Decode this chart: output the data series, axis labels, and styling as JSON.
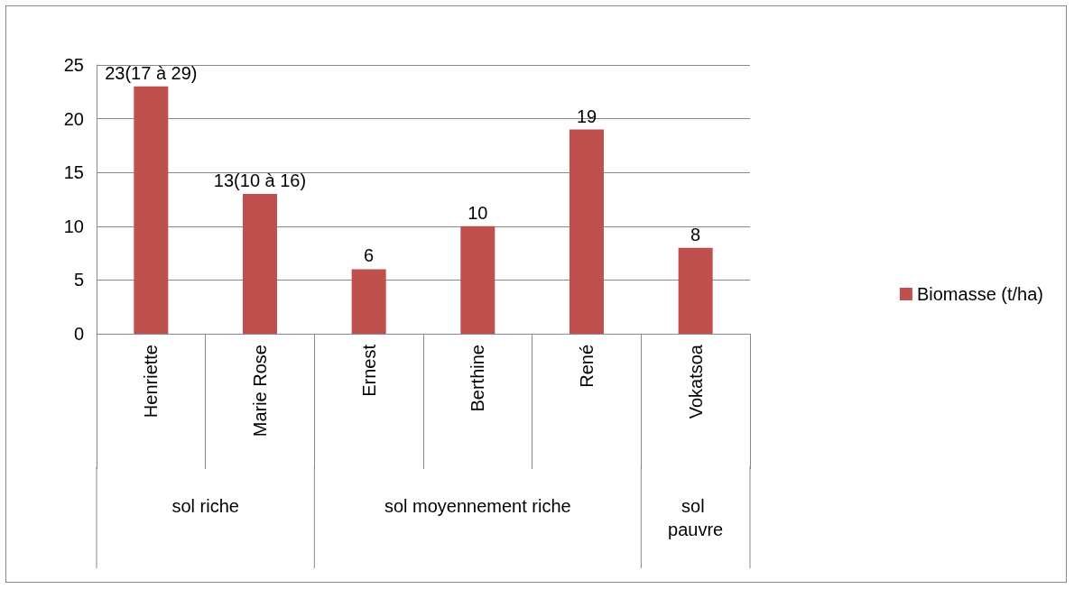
{
  "chart_data": {
    "type": "bar",
    "categories": [
      "Henriette",
      "Marie Rose",
      "Ernest",
      "Berthine",
      "René",
      "Vokatsoa"
    ],
    "series": [
      {
        "name": "Biomasse (t/ha)",
        "color": "#c0504d",
        "values": [
          23,
          13,
          6,
          10,
          19,
          8
        ],
        "value_labels": [
          "23(17 à 29)",
          "13(10 à 16)",
          "6",
          "10",
          "19",
          "8"
        ]
      }
    ],
    "ylim": [
      0,
      25
    ],
    "yticks": [
      0,
      5,
      10,
      15,
      20,
      25
    ],
    "grid": "y",
    "legend": "right",
    "annotations": [
      "sol riche",
      "sol moyennement riche",
      "sol pauvre"
    ]
  }
}
